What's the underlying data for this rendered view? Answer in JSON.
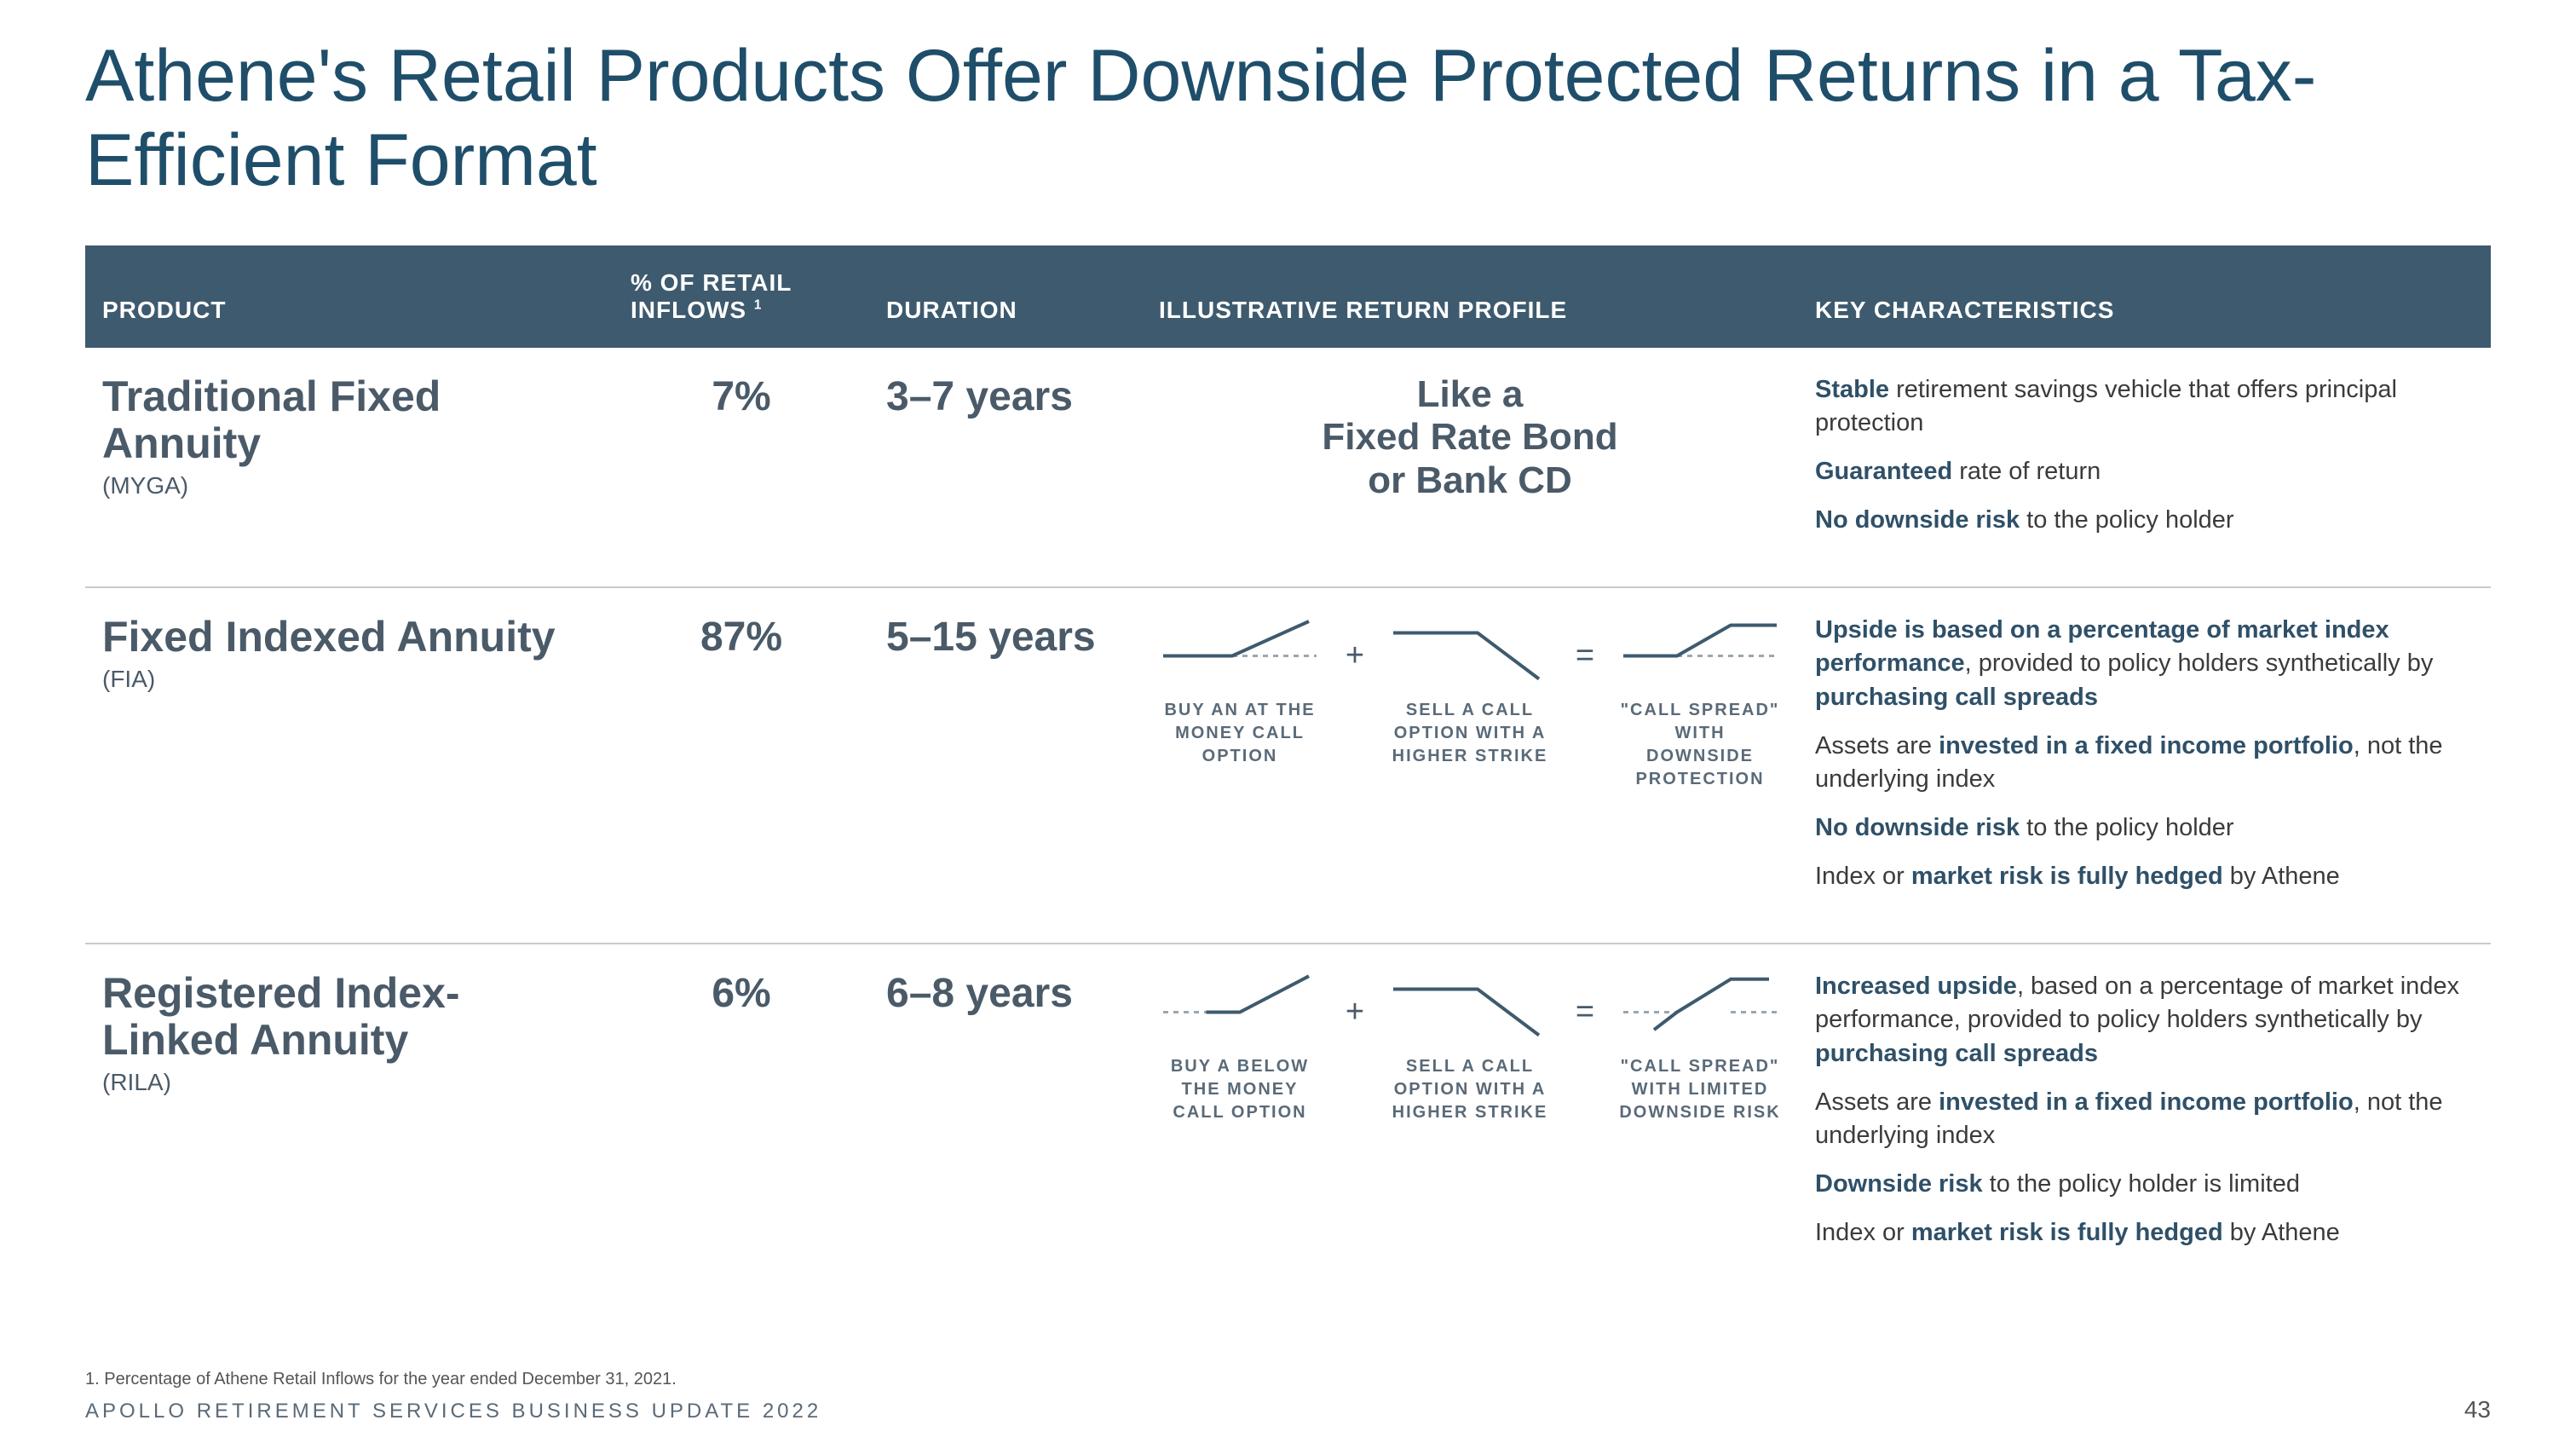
{
  "colors": {
    "heading": "#1f4e6a",
    "tableHeaderBg": "#3e5a6e",
    "tableHeaderText": "#ffffff",
    "productText": "#4a5a68",
    "bodyText": "#3b3b3b",
    "strongText": "#2f5068",
    "divider": "#c9c9c9",
    "payoffLine": "#3e5a6e",
    "payoffDash": "#9aa7b0"
  },
  "title": "Athene's Retail Products Offer Downside Protected Returns in a Tax-Efficient Format",
  "columns": {
    "product": "PRODUCT",
    "inflows": "% OF RETAIL INFLOWS",
    "inflows_sup": "1",
    "duration": "DURATION",
    "profile": "ILLUSTRATIVE RETURN PROFILE",
    "key": "KEY CHARACTERISTICS"
  },
  "rows": [
    {
      "name": "Traditional Fixed Annuity",
      "sub": "(MYGA)",
      "inflows": "7%",
      "duration": "3–7 years",
      "profile_type": "text",
      "profile_lines": [
        "Like a",
        "Fixed Rate Bond",
        "or Bank CD"
      ],
      "chars": [
        [
          {
            "t": "Stable",
            "s": true
          },
          {
            "t": " retirement savings vehicle that offers principal protection"
          }
        ],
        [
          {
            "t": "Guaranteed",
            "s": true
          },
          {
            "t": " rate of return"
          }
        ],
        [
          {
            "t": "No downside risk",
            "s": true
          },
          {
            "t": " to the policy holder"
          }
        ]
      ]
    },
    {
      "name": "Fixed Indexed Annuity",
      "sub": "(FIA)",
      "inflows": "87%",
      "duration": "5–15 years",
      "profile_type": "spread",
      "payoff": {
        "a": {
          "shape": "long_call_atm",
          "label": "BUY AN AT THE MONEY CALL OPTION"
        },
        "b": {
          "shape": "short_call_otm",
          "label": "SELL A CALL OPTION WITH A HIGHER STRIKE"
        },
        "c": {
          "shape": "call_spread_floor",
          "label": "\"CALL SPREAD\" WITH DOWNSIDE PROTECTION"
        }
      },
      "chars": [
        [
          {
            "t": "Upside is based on a percentage of market index performance",
            "s": true
          },
          {
            "t": ", provided to policy holders synthetically by "
          },
          {
            "t": "purchasing call spreads",
            "s": true
          }
        ],
        [
          {
            "t": "Assets are "
          },
          {
            "t": "invested in a fixed income portfolio",
            "s": true
          },
          {
            "t": ", not the underlying index"
          }
        ],
        [
          {
            "t": "No downside risk",
            "s": true
          },
          {
            "t": " to the policy holder"
          }
        ],
        [
          {
            "t": "Index or "
          },
          {
            "t": "market risk is fully hedged",
            "s": true
          },
          {
            "t": " by Athene"
          }
        ]
      ]
    },
    {
      "name": "Registered Index-Linked Annuity",
      "sub": "(RILA)",
      "inflows": "6%",
      "duration": "6–8 years",
      "profile_type": "spread",
      "payoff": {
        "a": {
          "shape": "long_call_itm",
          "label": "BUY A BELOW THE MONEY CALL OPTION"
        },
        "b": {
          "shape": "short_call_otm",
          "label": "SELL A CALL OPTION WITH A HIGHER STRIKE"
        },
        "c": {
          "shape": "call_spread_limited",
          "label": "\"CALL SPREAD\" WITH LIMITED DOWNSIDE RISK"
        }
      },
      "chars": [
        [
          {
            "t": "Increased upside",
            "s": true
          },
          {
            "t": ", based on a percentage of market index performance, provided to policy holders synthetically by "
          },
          {
            "t": "purchasing call spreads",
            "s": true
          }
        ],
        [
          {
            "t": "Assets are "
          },
          {
            "t": "invested in a fixed income portfolio",
            "s": true
          },
          {
            "t": ", not the underlying index"
          }
        ],
        [
          {
            "t": "Downside risk",
            "s": true
          },
          {
            "t": " to the policy holder is limited"
          }
        ],
        [
          {
            "t": "Index or "
          },
          {
            "t": "market risk is fully hedged",
            "s": true
          },
          {
            "t": " by Athene"
          }
        ]
      ]
    }
  ],
  "payoff_ops": {
    "plus": "+",
    "eq": "="
  },
  "footnote": "1. Percentage of Athene Retail Inflows for the year ended December 31, 2021.",
  "footer": "APOLLO RETIREMENT SERVICES BUSINESS UPDATE 2022",
  "page": "43",
  "payoff_svg": {
    "w": 180,
    "h": 90,
    "stroke_w": 4,
    "dash": "6,6"
  }
}
